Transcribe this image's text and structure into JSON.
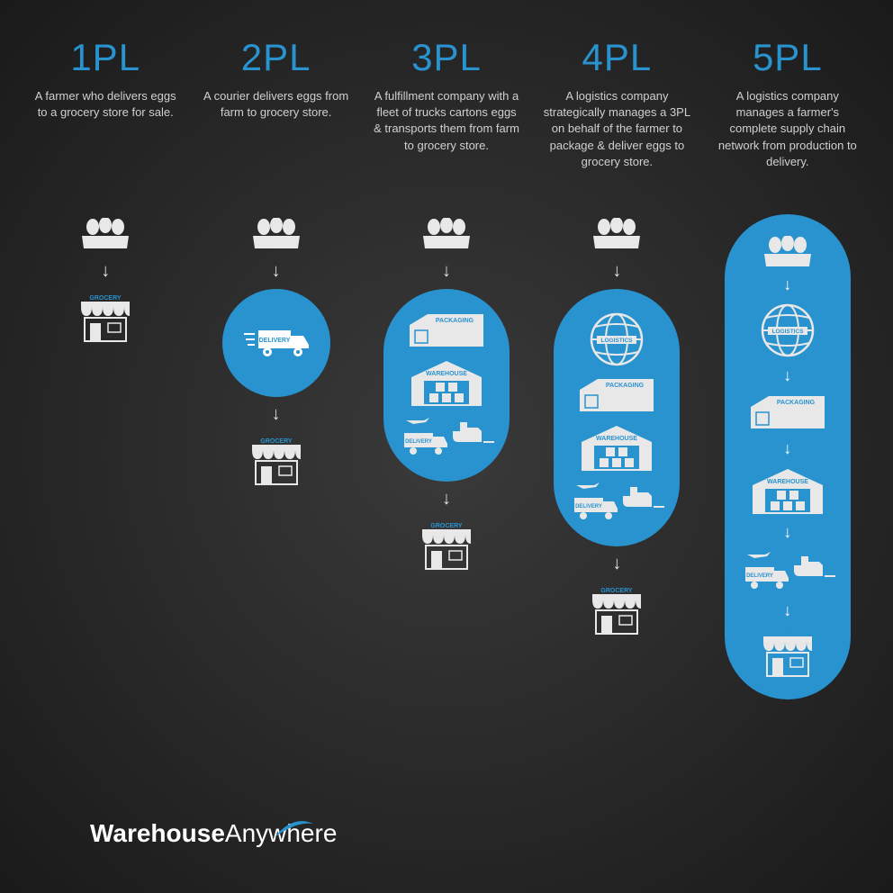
{
  "colors": {
    "accent": "#2993d0",
    "background_center": "#3a3a3a",
    "background_edge": "#1a1a1a",
    "text_light": "#d0d0d0",
    "icon_white": "#e8e8e8",
    "capsule_bg": "#2993d0"
  },
  "logo": {
    "bold": "Warehouse",
    "light": "Anywhere"
  },
  "columns": [
    {
      "title": "1PL",
      "desc": "A farmer who delivers eggs to a grocery store for sale.",
      "capsule_steps": [],
      "pre_capsule": [
        "eggs"
      ],
      "post_capsule": [
        "grocery"
      ]
    },
    {
      "title": "2PL",
      "desc": "A courier delivers eggs from farm to grocery store.",
      "capsule_steps": [
        "delivery"
      ],
      "pre_capsule": [
        "eggs"
      ],
      "post_capsule": [
        "grocery"
      ]
    },
    {
      "title": "3PL",
      "desc": "A fulfillment company with a fleet of trucks cartons eggs & transports them from farm to grocery store.",
      "capsule_steps": [
        "packaging",
        "warehouse",
        "delivery"
      ],
      "pre_capsule": [
        "eggs"
      ],
      "post_capsule": [
        "grocery"
      ]
    },
    {
      "title": "4PL",
      "desc": "A logistics company strategically manages a 3PL on behalf of the farmer to package & deliver eggs to grocery store.",
      "capsule_steps": [
        "logistics",
        "packaging",
        "warehouse",
        "delivery"
      ],
      "pre_capsule": [
        "eggs"
      ],
      "post_capsule": [
        "grocery"
      ]
    },
    {
      "title": "5PL",
      "desc": "A logistics company manages a farmer's complete supply chain network from production to delivery.",
      "capsule_steps": [
        "eggs",
        "logistics",
        "packaging",
        "warehouse",
        "delivery",
        "grocery"
      ],
      "pre_capsule": [],
      "post_capsule": []
    }
  ],
  "labels": {
    "delivery": "DELIVERY",
    "packaging": "PACKAGING",
    "warehouse": "WAREHOUSE",
    "logistics": "LOGISTICS",
    "grocery": "GROCERY"
  }
}
